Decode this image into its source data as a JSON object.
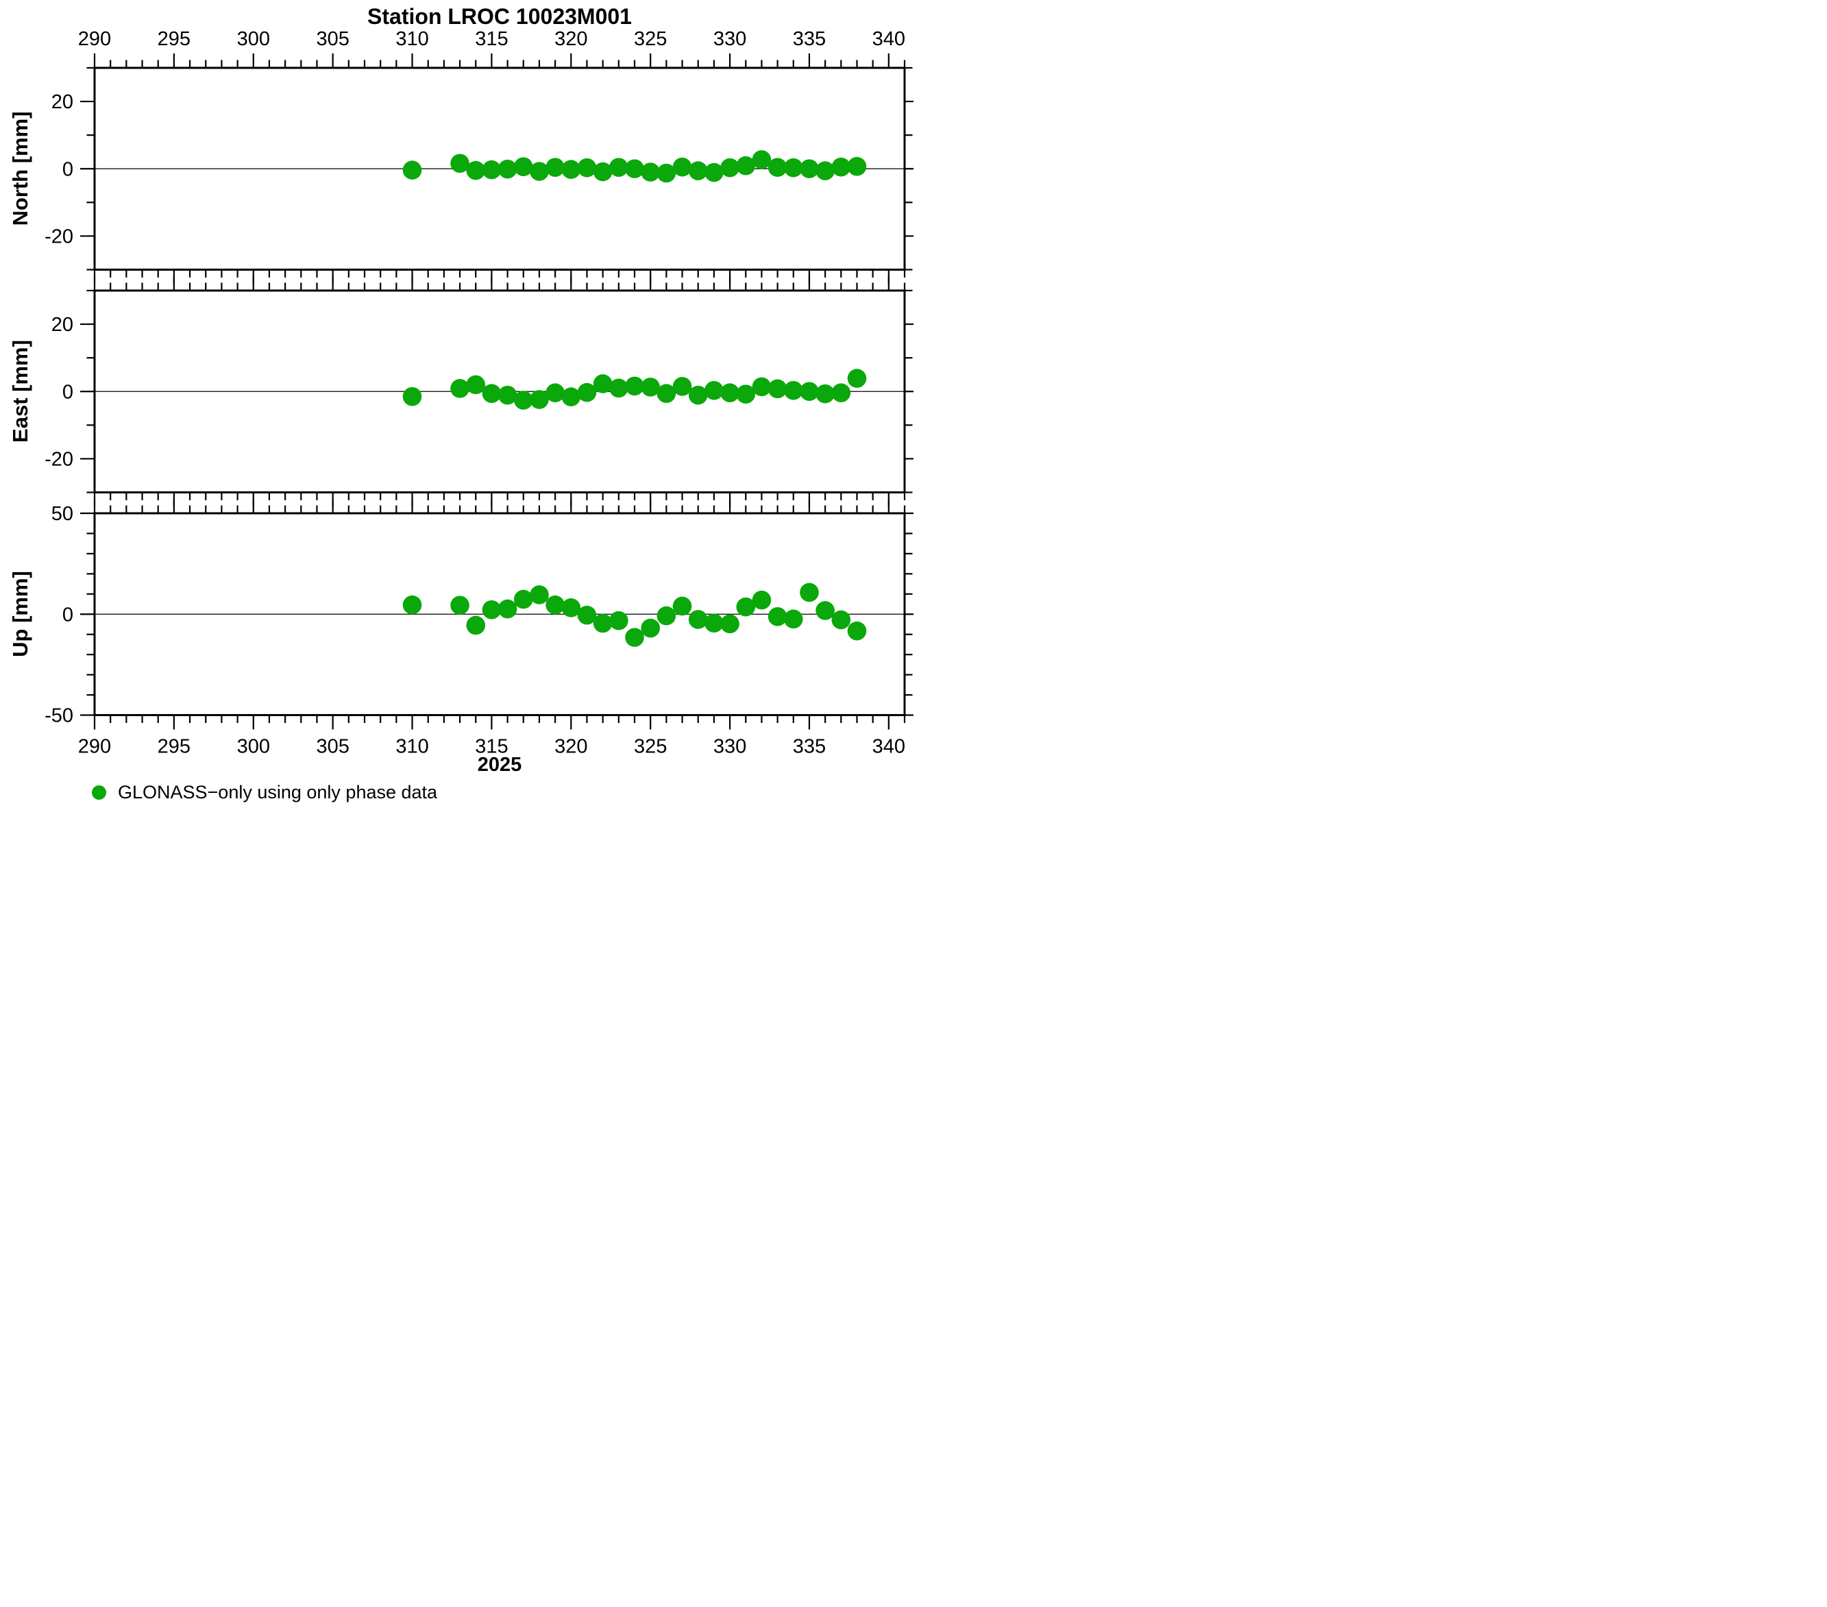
{
  "title": "Station LROC 10023M001",
  "year_label": "2025",
  "legend": {
    "marker_color": "#0aa80a",
    "label": "GLONASS−only using only phase data"
  },
  "chart_data": {
    "type": "scatter",
    "title": "Station LROC 10023M001",
    "xlabel": "2025",
    "x_axis": {
      "range": [
        290,
        341
      ],
      "major_ticks": [
        290,
        295,
        300,
        305,
        310,
        315,
        320,
        325,
        330,
        335,
        340
      ],
      "minor_step": 1,
      "labels_top": true,
      "labels_bottom": true
    },
    "marker": {
      "shape": "circle",
      "color": "#0aa80a"
    },
    "series_name": "GLONASS−only using only phase data",
    "x_days": [
      310,
      313,
      314,
      315,
      316,
      317,
      318,
      319,
      320,
      321,
      322,
      323,
      324,
      325,
      326,
      327,
      328,
      329,
      330,
      331,
      332,
      333,
      334,
      335,
      336,
      337,
      338
    ],
    "panels": [
      {
        "ylabel": "North [mm]",
        "ylim": [
          -30,
          30
        ],
        "yticks_labeled": [
          -20,
          0,
          20
        ],
        "y_minor_step": 10,
        "zero_line": true,
        "values": [
          -0.4,
          1.6,
          -0.5,
          -0.3,
          -0.1,
          0.6,
          -0.8,
          0.4,
          -0.2,
          0.3,
          -0.9,
          0.4,
          0.0,
          -1.0,
          -1.3,
          0.5,
          -0.6,
          -1.1,
          0.3,
          0.9,
          2.7,
          0.4,
          0.3,
          0.0,
          -0.6,
          0.5,
          0.7
        ]
      },
      {
        "ylabel": "East [mm]",
        "ylim": [
          -30,
          30
        ],
        "yticks_labeled": [
          -20,
          0,
          20
        ],
        "y_minor_step": 10,
        "zero_line": true,
        "values": [
          -1.5,
          0.9,
          2.0,
          -0.6,
          -1.1,
          -2.6,
          -2.4,
          -0.4,
          -1.6,
          -0.3,
          2.3,
          1.0,
          1.6,
          1.3,
          -0.6,
          1.5,
          -1.1,
          0.3,
          -0.4,
          -0.8,
          1.4,
          0.8,
          0.3,
          0.0,
          -0.7,
          -0.4,
          3.9
        ]
      },
      {
        "ylabel": "Up [mm]",
        "ylim": [
          -50,
          50
        ],
        "yticks_labeled": [
          -50,
          0,
          50
        ],
        "y_minor_step": 10,
        "zero_line": true,
        "values": [
          4.6,
          4.4,
          -5.5,
          2.2,
          2.6,
          7.4,
          9.6,
          4.6,
          3.2,
          -0.5,
          -4.5,
          -3.2,
          -11.5,
          -6.9,
          -0.8,
          4.0,
          -2.6,
          -4.4,
          -4.8,
          3.6,
          7.0,
          -1.2,
          -2.4,
          10.8,
          1.8,
          -2.8,
          -8.3
        ]
      }
    ]
  }
}
